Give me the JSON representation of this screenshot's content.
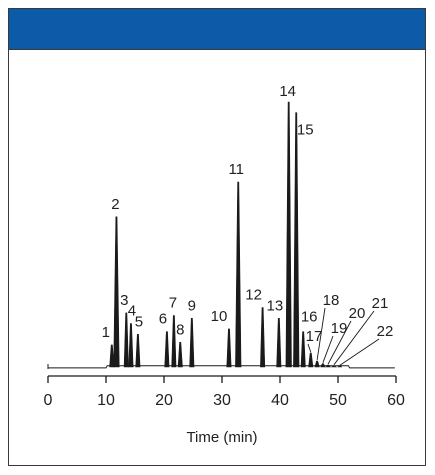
{
  "colors": {
    "header": "#0d5aa8",
    "trace": "#1a1a1a",
    "axis": "#1a1a1a"
  },
  "chart_data": {
    "type": "line",
    "title": "",
    "xlabel": "Time (min)",
    "ylabel": "",
    "xlim": [
      0,
      60
    ],
    "xticks": [
      0,
      10,
      20,
      30,
      40,
      50,
      60
    ],
    "xtick_labels": [
      "0",
      "10",
      "20",
      "30",
      "40",
      "50",
      "60"
    ],
    "grid": false,
    "peaks": [
      {
        "label": "1",
        "time": 11.0,
        "height": 0.09
      },
      {
        "label": "2",
        "time": 11.8,
        "height": 0.57
      },
      {
        "label": "3",
        "time": 13.5,
        "height": 0.21
      },
      {
        "label": "4",
        "time": 14.3,
        "height": 0.17
      },
      {
        "label": "5",
        "time": 15.5,
        "height": 0.13
      },
      {
        "label": "6",
        "time": 20.5,
        "height": 0.14
      },
      {
        "label": "7",
        "time": 21.7,
        "height": 0.2
      },
      {
        "label": "8",
        "time": 22.8,
        "height": 0.1
      },
      {
        "label": "9",
        "time": 24.8,
        "height": 0.19
      },
      {
        "label": "10",
        "time": 31.2,
        "height": 0.15
      },
      {
        "label": "11",
        "time": 32.8,
        "height": 0.7
      },
      {
        "label": "12",
        "time": 37.0,
        "height": 0.23
      },
      {
        "label": "13",
        "time": 39.8,
        "height": 0.19
      },
      {
        "label": "14",
        "time": 41.5,
        "height": 1.0
      },
      {
        "label": "15",
        "time": 42.8,
        "height": 0.96
      },
      {
        "label": "16",
        "time": 44.0,
        "height": 0.14
      },
      {
        "label": "17",
        "time": 45.3,
        "height": 0.06
      },
      {
        "label": "18",
        "time": 46.4,
        "height": 0.03
      },
      {
        "label": "19",
        "time": 47.4,
        "height": 0.02
      },
      {
        "label": "20",
        "time": 48.3,
        "height": 0.015
      },
      {
        "label": "21",
        "time": 49.3,
        "height": 0.012
      },
      {
        "label": "22",
        "time": 50.3,
        "height": 0.01
      }
    ]
  }
}
